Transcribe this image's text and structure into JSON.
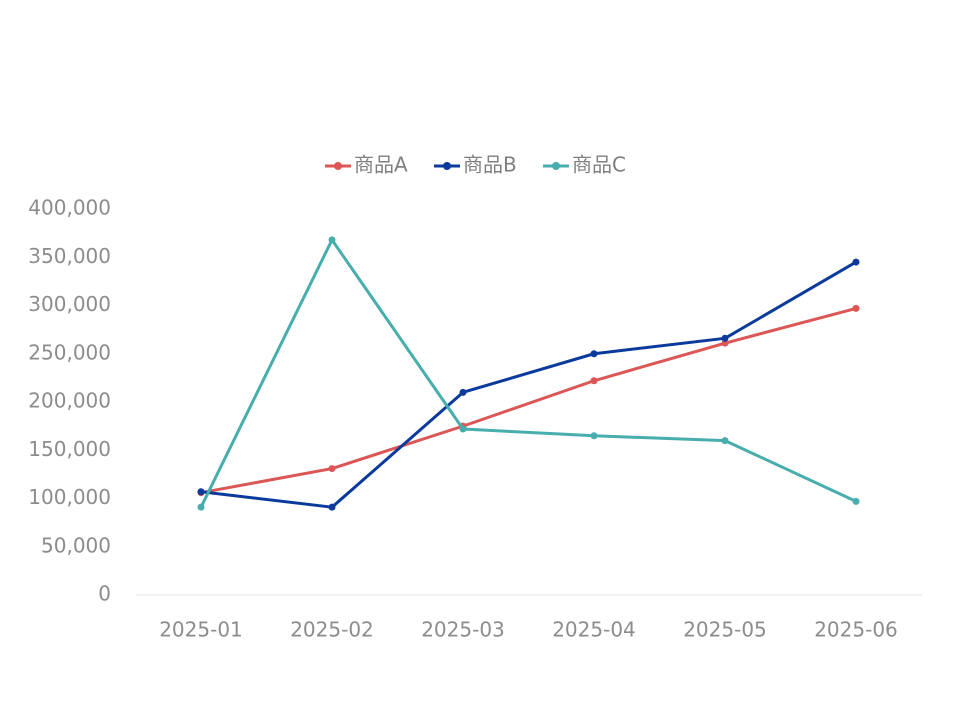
{
  "chart_data": {
    "type": "line",
    "title": "",
    "xlabel": "",
    "ylabel": "",
    "categories": [
      "2025-01",
      "2025-02",
      "2025-03",
      "2025-04",
      "2025-05",
      "2025-06"
    ],
    "ylim": [
      0,
      400000
    ],
    "yticks": [
      0,
      50000,
      100000,
      150000,
      200000,
      250000,
      300000,
      350000,
      400000
    ],
    "ytick_labels": [
      "0",
      "50,000",
      "100,000",
      "150,000",
      "200,000",
      "250,000",
      "300,000",
      "350,000",
      "400,000"
    ],
    "grid": false,
    "legend_position": "top-center",
    "series": [
      {
        "name": "商品A",
        "color": "#dc5656",
        "values": [
          106000,
          131000,
          175000,
          222000,
          261000,
          297000
        ]
      },
      {
        "name": "商品B",
        "color": "#0a3a9c",
        "values": [
          107000,
          91000,
          210000,
          250000,
          266000,
          345000
        ]
      },
      {
        "name": "商品C",
        "color": "#47adad",
        "values": [
          91000,
          368000,
          172000,
          165000,
          160000,
          97000
        ]
      }
    ]
  }
}
